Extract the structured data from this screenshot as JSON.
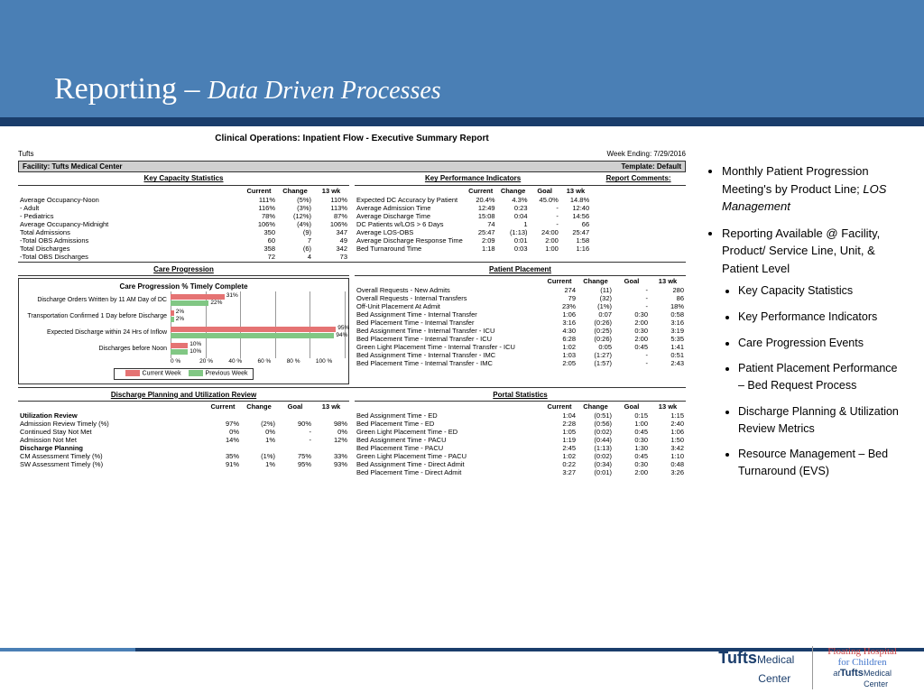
{
  "slide": {
    "title_main": "Reporting",
    "title_sep": " – ",
    "title_sub": "Data Driven Processes"
  },
  "report": {
    "title": "Clinical Operations: Inpatient Flow - Executive Summary Report",
    "org": "Tufts",
    "week_ending_label": "Week Ending: 7/29/2016",
    "facility_label": "Facility: Tufts Medical Center",
    "template_label": "Template: Default",
    "columns4": [
      "Current",
      "Change",
      "13 wk"
    ],
    "columns5": [
      "Current",
      "Change",
      "Goal",
      "13 wk"
    ],
    "sections": {
      "kcs": "Key Capacity Statistics",
      "kpi": "Key Performance Indicators",
      "comments": "Report Comments:",
      "care": "Care Progression",
      "placement": "Patient Placement",
      "dpur": "Discharge Planning and Utilization Review",
      "portal": "Portal Statistics"
    },
    "kcs_rows": [
      [
        "Average Occupancy-Noon",
        "111%",
        "(5%)",
        "110%"
      ],
      [
        "  - Adult",
        "116%",
        "(3%)",
        "113%"
      ],
      [
        "  - Pediatrics",
        "78%",
        "(12%)",
        "87%"
      ],
      [
        "Average Occupancy-Midnight",
        "106%",
        "(4%)",
        "106%"
      ],
      [
        "Total Admissions",
        "350",
        "(9)",
        "347"
      ],
      [
        "  -Total OBS Admissions",
        "60",
        "7",
        "49"
      ],
      [
        "Total Discharges",
        "358",
        "(6)",
        "342"
      ],
      [
        "  -Total OBS Discharges",
        "72",
        "4",
        "73"
      ]
    ],
    "kpi_rows": [
      [
        "Expected DC Accuracy by Patient",
        "20.4%",
        "4.3%",
        "45.0%",
        "14.8%"
      ],
      [
        "Average Admission Time",
        "12:49",
        "0:23",
        "-",
        "12:40"
      ],
      [
        "Average Discharge Time",
        "15:08",
        "0:04",
        "-",
        "14:56"
      ],
      [
        "DC Patients w/LOS > 6 Days",
        "74",
        "1",
        "-",
        "66"
      ],
      [
        "Average LOS-OBS",
        "25:47",
        "(1:13)",
        "24:00",
        "25:47"
      ],
      [
        "Average Discharge Response Time",
        "2:09",
        "0:01",
        "2:00",
        "1:58"
      ],
      [
        "Bed Turnaround Time",
        "1:18",
        "0:03",
        "1:00",
        "1:16"
      ]
    ],
    "care_chart": {
      "title": "Care Progression % Timely Complete",
      "x_ticks": [
        "0 %",
        "20 %",
        "40 %",
        "60 %",
        "80 %",
        "100 %"
      ],
      "bars": [
        {
          "label": "Discharge Orders Written by 11 AM Day of DC",
          "cur": 31,
          "prev": 22
        },
        {
          "label": "Transportation Confirmed 1 Day before Discharge",
          "cur": 2,
          "prev": 2
        },
        {
          "label": "Expected Discharge within 24 Hrs of Inflow",
          "cur": 95,
          "prev": 94
        },
        {
          "label": "Discharges before Noon",
          "cur": 10,
          "prev": 10
        }
      ],
      "legend_cur": "Current Week",
      "legend_prev": "Previous Week",
      "color_cur": "#e57373",
      "color_prev": "#81c784"
    },
    "placement_rows": [
      [
        "Overall Requests - New Admits",
        "274",
        "(11)",
        "-",
        "280"
      ],
      [
        "Overall Requests - Internal Transfers",
        "79",
        "(32)",
        "-",
        "86"
      ],
      [
        "Off-Unit Placement At Admit",
        "23%",
        "(1%)",
        "-",
        "18%"
      ],
      [
        "",
        "",
        "",
        "",
        ""
      ],
      [
        "Bed Assignment Time - Internal Transfer",
        "1:06",
        "0:07",
        "0:30",
        "0:58"
      ],
      [
        "Bed Placement Time - Internal Transfer",
        "3:16",
        "(0:26)",
        "2:00",
        "3:16"
      ],
      [
        "",
        "",
        "",
        "",
        ""
      ],
      [
        "Bed Assignment Time - Internal Transfer - ICU",
        "4:30",
        "(0:25)",
        "0:30",
        "3:19"
      ],
      [
        "Bed Placement Time - Internal Transfer - ICU",
        "6:28",
        "(0:26)",
        "2:00",
        "5:35"
      ],
      [
        "Green Light Placement Time - Internal Transfer - ICU",
        "1:02",
        "0:05",
        "0:45",
        "1:41"
      ],
      [
        "",
        "",
        "",
        "",
        ""
      ],
      [
        "Bed Assignment Time - Internal Transfer - IMC",
        "1:03",
        "(1:27)",
        "-",
        "0:51"
      ],
      [
        "Bed Placement Time - Internal Transfer - IMC",
        "2:05",
        "(1:57)",
        "-",
        "2:43"
      ]
    ],
    "util_header": "Utilization Review",
    "util_rows": [
      [
        "Admission Review Timely (%)",
        "97%",
        "(2%)",
        "90%",
        "98%"
      ],
      [
        "Continued Stay Not Met",
        "0%",
        "0%",
        "-",
        "0%"
      ],
      [
        "Admission Not Met",
        "14%",
        "1%",
        "-",
        "12%"
      ]
    ],
    "dp_header": "Discharge Planning",
    "dp_rows": [
      [
        "CM Assessment Timely (%)",
        "35%",
        "(1%)",
        "75%",
        "33%"
      ],
      [
        "SW Assessment Timely (%)",
        "91%",
        "1%",
        "95%",
        "93%"
      ]
    ],
    "portal_rows": [
      [
        "Bed Assignment Time - ED",
        "1:04",
        "(0:51)",
        "0:15",
        "1:15"
      ],
      [
        "Bed Placement Time - ED",
        "2:28",
        "(0:56)",
        "1:00",
        "2:40"
      ],
      [
        "Green Light Placement Time - ED",
        "1:05",
        "(0:02)",
        "0:45",
        "1:06"
      ],
      [
        "",
        "",
        "",
        "",
        ""
      ],
      [
        "Bed Assignment Time - PACU",
        "1:19",
        "(0:44)",
        "0:30",
        "1:50"
      ],
      [
        "Bed Placement Time - PACU",
        "2:45",
        "(1:13)",
        "1:30",
        "3:42"
      ],
      [
        "Green Light Placement Time - PACU",
        "1:02",
        "(0:02)",
        "0:45",
        "1:10"
      ],
      [
        "",
        "",
        "",
        "",
        ""
      ],
      [
        "Bed Assignment Time - Direct Admit",
        "0:22",
        "(0:34)",
        "0:30",
        "0:48"
      ],
      [
        "Bed Placement Time - Direct Admit",
        "3:27",
        "(0:01)",
        "2:00",
        "3:26"
      ]
    ]
  },
  "bullets": {
    "b1a": "Monthly Patient Progression Meeting's by Product Line; ",
    "b1b": "LOS Management",
    "b2": "Reporting Available @ Facility, Product/ Service Line, Unit, & Patient Level",
    "sub": [
      "Key Capacity Statistics",
      "Key Performance Indicators",
      "Care Progression Events",
      "Patient Placement Performance – Bed Request Process",
      "Discharge Planning & Utilization Review Metrics",
      "Resource Management – Bed Turnaround (EVS)"
    ]
  },
  "footer": {
    "logo1_a": "Tufts",
    "logo1_b": "Medical",
    "logo1_c": "Center",
    "logo2_a": "Floating Hospital",
    "logo2_b": "for Children",
    "logo2_c": "at",
    "logo2_d": "Tufts",
    "logo2_e": "Medical",
    "logo2_f": "Center"
  }
}
